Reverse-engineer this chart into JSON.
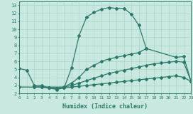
{
  "title": "",
  "xlabel": "Humidex (Indice chaleur)",
  "xlim": [
    0,
    23
  ],
  "ylim": [
    2,
    13.5
  ],
  "xticks": [
    0,
    1,
    2,
    3,
    4,
    5,
    6,
    7,
    8,
    9,
    10,
    11,
    12,
    13,
    14,
    15,
    16,
    17,
    18,
    19,
    20,
    21,
    22,
    23
  ],
  "yticks": [
    2,
    3,
    4,
    5,
    6,
    7,
    8,
    9,
    10,
    11,
    12,
    13
  ],
  "line_color": "#2a7a6a",
  "background_color": "#c8e8e0",
  "grid_color": "#b0d8d0",
  "lines": [
    {
      "x": [
        0,
        1,
        2,
        3,
        4,
        5,
        6,
        7,
        8,
        9,
        10,
        11,
        12,
        13,
        14,
        15,
        16,
        17
      ],
      "y": [
        5.1,
        4.9,
        3.0,
        3.0,
        2.7,
        2.5,
        2.7,
        5.2,
        9.2,
        11.5,
        12.1,
        12.5,
        12.7,
        12.6,
        12.6,
        11.9,
        10.5,
        7.6
      ]
    },
    {
      "x": [
        0,
        6,
        7,
        8,
        9,
        10,
        11,
        12,
        13,
        14,
        15,
        16,
        17,
        21,
        22,
        23
      ],
      "y": [
        2.8,
        2.8,
        3.3,
        4.0,
        5.0,
        5.5,
        6.0,
        6.3,
        6.5,
        6.7,
        6.9,
        7.1,
        7.6,
        6.5,
        6.6,
        3.5
      ]
    },
    {
      "x": [
        2,
        3,
        4,
        5,
        6,
        7,
        8,
        9,
        10,
        11,
        12,
        13,
        14,
        15,
        16,
        17,
        18,
        19,
        20,
        21,
        22,
        23
      ],
      "y": [
        2.8,
        2.8,
        2.7,
        2.6,
        2.8,
        3.0,
        3.3,
        3.6,
        3.9,
        4.2,
        4.5,
        4.7,
        4.9,
        5.1,
        5.3,
        5.5,
        5.7,
        5.8,
        5.9,
        6.0,
        5.9,
        3.5
      ]
    },
    {
      "x": [
        2,
        3,
        4,
        5,
        6,
        7,
        8,
        9,
        10,
        11,
        12,
        13,
        14,
        15,
        16,
        17,
        18,
        19,
        20,
        21,
        22,
        23
      ],
      "y": [
        2.8,
        2.8,
        2.7,
        2.6,
        2.7,
        2.8,
        2.9,
        3.0,
        3.1,
        3.2,
        3.3,
        3.4,
        3.5,
        3.6,
        3.7,
        3.8,
        3.9,
        4.0,
        4.1,
        4.2,
        4.0,
        3.5
      ]
    }
  ],
  "marker": "D",
  "markersize": 2.0,
  "linewidth": 0.9
}
